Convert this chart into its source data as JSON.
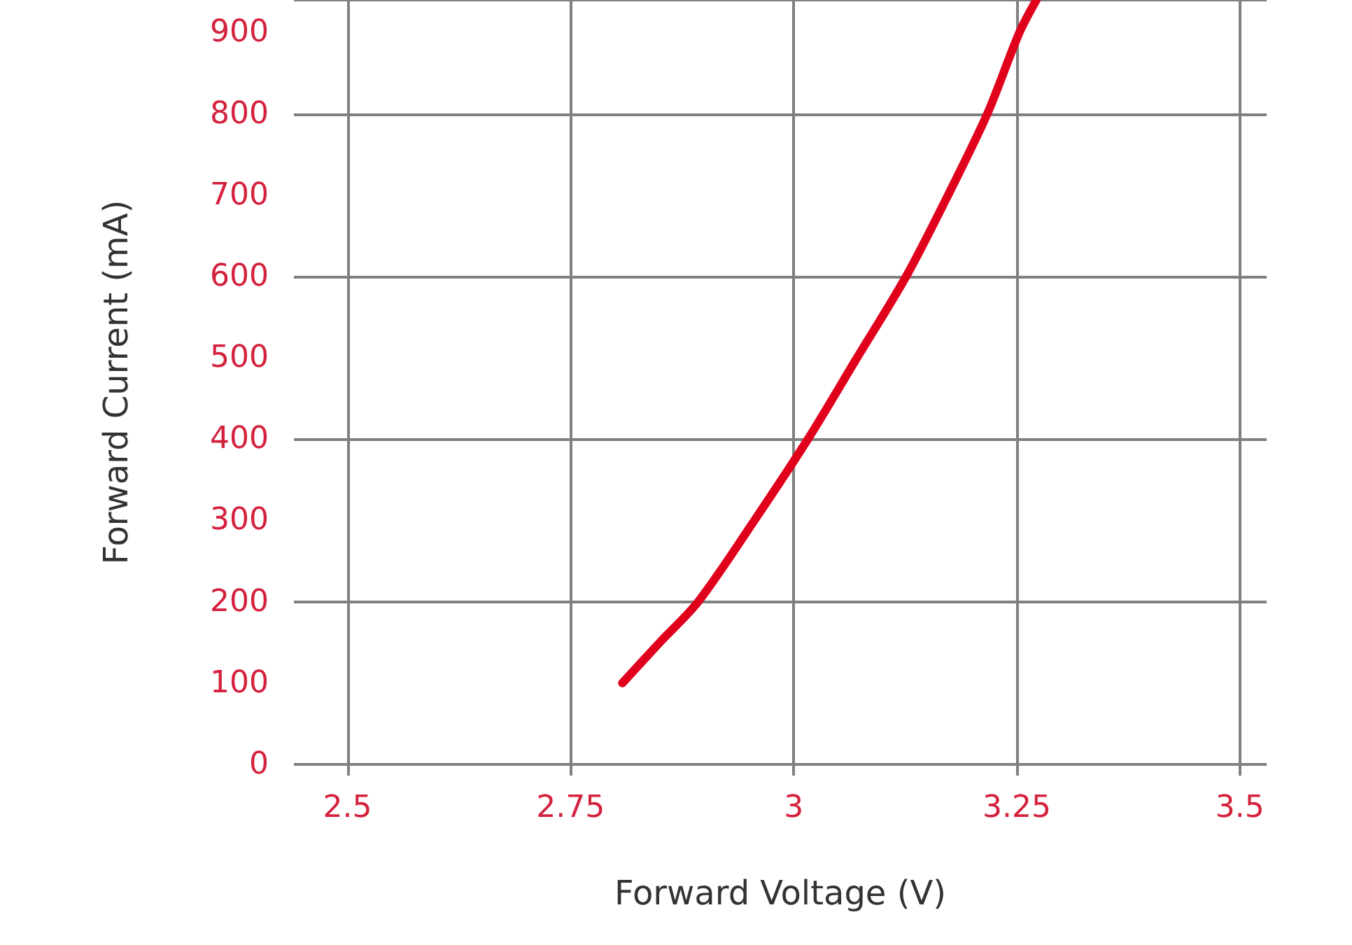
{
  "chart_data": {
    "type": "line",
    "xlabel": "Forward Voltage (V)",
    "ylabel": "Forward Current (mA)",
    "x": [
      2.808,
      2.85,
      2.893,
      2.956,
      3.016,
      3.071,
      3.126,
      3.173,
      3.217,
      3.253,
      3.272
    ],
    "series": [
      {
        "color": "#e0001b",
        "values": [
          100,
          150,
          200,
          300,
          400,
          500,
          600,
          700,
          800,
          900,
          940
        ]
      }
    ],
    "xlim": [
      2.44,
      3.53
    ],
    "xticks": [
      2.5,
      2.75,
      3,
      3.25,
      3.5
    ],
    "ylim": [
      0,
      940
    ],
    "yticks": [
      0,
      100,
      200,
      300,
      400,
      500,
      600,
      700,
      800,
      900
    ],
    "grid": true,
    "marker": "none",
    "line_style": "solid"
  }
}
